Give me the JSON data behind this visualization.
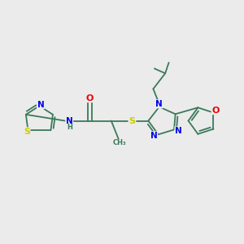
{
  "bg_color": "#ebebeb",
  "bond_color": "#3a7a5a",
  "atom_colors": {
    "N": "#0000ee",
    "O": "#ee0000",
    "S": "#cccc00",
    "C": "#3a7a5a"
  },
  "bond_lw": 1.3,
  "font_size": 7.5
}
